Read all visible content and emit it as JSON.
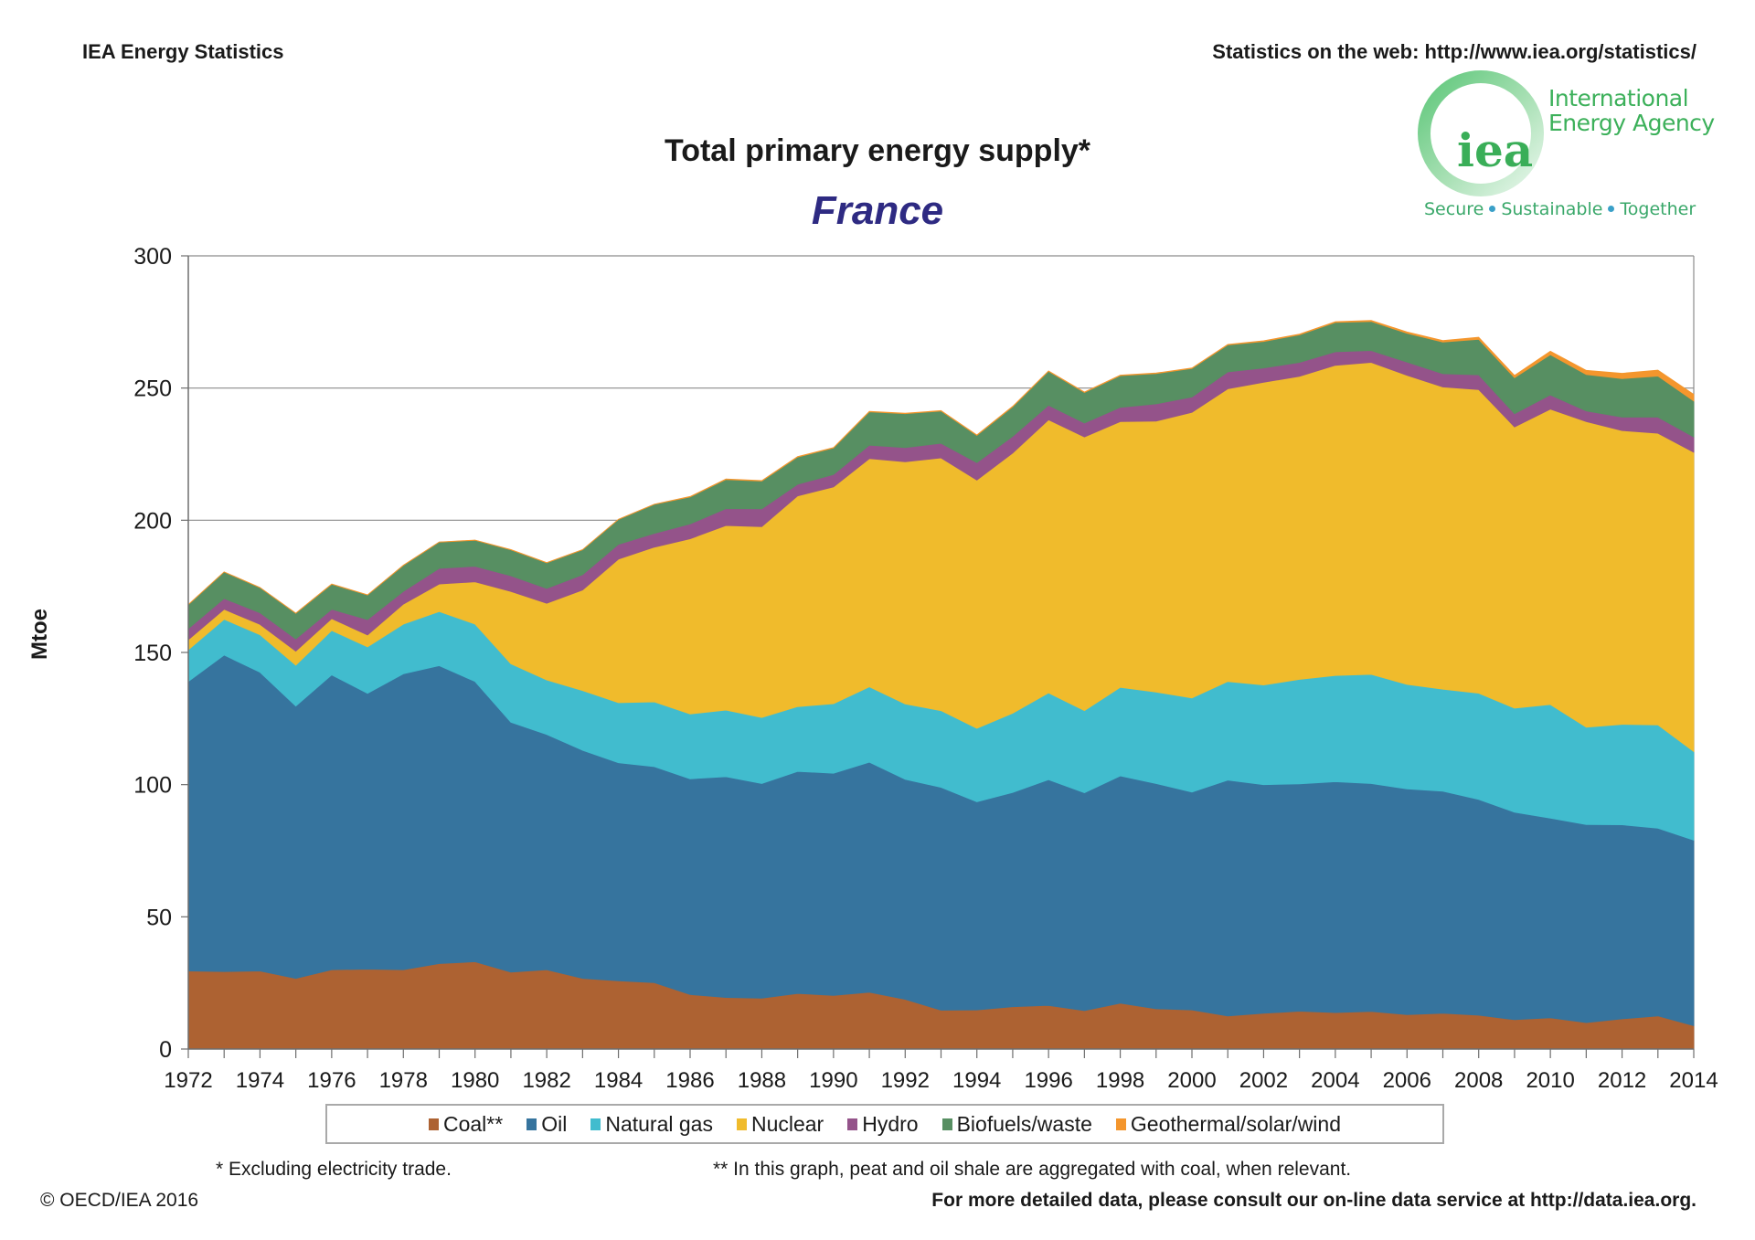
{
  "header": {
    "left": "IEA Energy Statistics",
    "right": "Statistics on the web: http://www.iea.org/statistics/"
  },
  "logo": {
    "mark": "iea",
    "name_line1": "International",
    "name_line2": "Energy Agency",
    "tagline": [
      "Secure",
      "Sustainable",
      "Together"
    ],
    "color": "#3cb05a"
  },
  "footer": {
    "note1": "* Excluding electricity trade.",
    "note2": "**  In this graph, peat and oil shale are aggregated with coal, when relevant.",
    "copyright": "© OECD/IEA 2016",
    "more": "For more detailed data, please consult our on-line data service at http://data.iea.org."
  },
  "chart_data": {
    "type": "area",
    "stacked": true,
    "title": "Total primary energy supply*",
    "subtitle": "France",
    "xlabel": "",
    "ylabel": "Mtoe",
    "ylim": [
      0,
      300
    ],
    "yticks": [
      0,
      50,
      100,
      150,
      200,
      250,
      300
    ],
    "xlim": [
      1972,
      2014
    ],
    "xtick_labels": [
      "1972",
      "1974",
      "1976",
      "1978",
      "1980",
      "1982",
      "1984",
      "1986",
      "1988",
      "1990",
      "1992",
      "1994",
      "1996",
      "1998",
      "2000",
      "2002",
      "2004",
      "2006",
      "2008",
      "2010",
      "2012",
      "2014"
    ],
    "grid": true,
    "legend_position": "bottom",
    "x": [
      1972,
      1973,
      1974,
      1975,
      1976,
      1977,
      1978,
      1979,
      1980,
      1981,
      1982,
      1983,
      1984,
      1985,
      1986,
      1987,
      1988,
      1989,
      1990,
      1991,
      1992,
      1993,
      1994,
      1995,
      1996,
      1997,
      1998,
      1999,
      2000,
      2001,
      2002,
      2003,
      2004,
      2005,
      2006,
      2007,
      2008,
      2009,
      2010,
      2011,
      2012,
      2013,
      2014
    ],
    "series": [
      {
        "name": "Coal**",
        "color": "#ad6232",
        "values": [
          29.5,
          29.3,
          29.5,
          26.7,
          30.0,
          30.2,
          30.0,
          32.3,
          33.0,
          29.1,
          30.0,
          26.7,
          25.8,
          25.1,
          20.6,
          19.5,
          19.2,
          21.0,
          20.3,
          21.5,
          18.8,
          14.7,
          14.8,
          16.0,
          16.5,
          14.5,
          17.3,
          15.2,
          14.8,
          12.5,
          13.5,
          14.3,
          13.8,
          14.2,
          13.0,
          13.5,
          12.8,
          11.1,
          11.8,
          10.0,
          11.4,
          12.5,
          8.8
        ]
      },
      {
        "name": "Oil",
        "color": "#36749e",
        "values": [
          109.5,
          119.7,
          113.0,
          103.0,
          111.5,
          104.3,
          111.9,
          112.7,
          106.0,
          94.5,
          89.0,
          86.3,
          82.5,
          81.7,
          81.6,
          83.5,
          81.2,
          84.0,
          84.0,
          87.0,
          83.2,
          84.3,
          78.7,
          81.0,
          85.4,
          82.4,
          86.0,
          85.2,
          82.4,
          89.2,
          86.5,
          86.0,
          87.3,
          86.2,
          85.4,
          84.0,
          81.6,
          78.5,
          75.5,
          74.9,
          73.4,
          71.0,
          70.2
        ]
      },
      {
        "name": "Natural gas",
        "color": "#41bcce",
        "values": [
          12.0,
          13.5,
          14.2,
          15.5,
          16.8,
          17.6,
          18.8,
          20.5,
          21.7,
          22.1,
          20.6,
          22.6,
          22.7,
          24.5,
          24.5,
          25.2,
          25.0,
          24.5,
          26.3,
          28.5,
          28.5,
          29.0,
          27.8,
          30.0,
          32.8,
          31.1,
          33.5,
          34.6,
          35.6,
          37.3,
          37.7,
          39.5,
          40.2,
          41.3,
          39.5,
          38.6,
          40.2,
          39.3,
          43.0,
          36.8,
          38.0,
          39.1,
          33.5
        ]
      },
      {
        "name": "Nuclear",
        "color": "#f0bb2c",
        "values": [
          3.8,
          3.8,
          3.9,
          5.3,
          4.5,
          4.5,
          7.6,
          10.4,
          16.0,
          27.4,
          29.0,
          38.0,
          54.3,
          58.5,
          66.3,
          69.8,
          72.2,
          79.7,
          82.0,
          86.3,
          91.6,
          95.6,
          93.9,
          98.4,
          103.3,
          103.5,
          100.5,
          102.5,
          108.0,
          110.7,
          114.5,
          114.6,
          117.3,
          118.0,
          116.9,
          114.3,
          114.8,
          106.4,
          111.7,
          115.6,
          111.1,
          110.3,
          113.2
        ]
      },
      {
        "name": "Hydro",
        "color": "#94538a",
        "values": [
          4.2,
          4.1,
          4.4,
          4.6,
          3.5,
          5.8,
          4.8,
          5.9,
          5.9,
          5.9,
          5.6,
          5.8,
          5.6,
          5.2,
          5.6,
          6.4,
          6.7,
          4.4,
          4.7,
          5.1,
          5.4,
          5.5,
          6.6,
          6.3,
          5.5,
          5.3,
          5.4,
          6.5,
          5.8,
          6.4,
          5.4,
          5.3,
          5.1,
          4.5,
          5.0,
          5.0,
          5.6,
          5.0,
          5.4,
          4.0,
          5.1,
          6.1,
          5.8
        ]
      },
      {
        "name": "Biofuels/waste",
        "color": "#578f62",
        "values": [
          9.0,
          10.0,
          9.5,
          9.7,
          9.5,
          9.3,
          9.8,
          9.9,
          9.8,
          9.8,
          9.7,
          9.4,
          9.4,
          11.0,
          10.2,
          11.0,
          10.5,
          10.3,
          10.0,
          12.6,
          12.8,
          12.2,
          10.3,
          11.2,
          12.8,
          11.5,
          12.0,
          11.5,
          10.8,
          10.2,
          10.0,
          10.4,
          11.1,
          11.0,
          10.9,
          12.0,
          13.4,
          13.6,
          15.2,
          13.8,
          14.6,
          15.5,
          13.6
        ]
      },
      {
        "name": "Geothermal/solar/wind",
        "color": "#f4962d",
        "values": [
          0.1,
          0.1,
          0.1,
          0.1,
          0.1,
          0.1,
          0.1,
          0.1,
          0.1,
          0.1,
          0.1,
          0.1,
          0.1,
          0.1,
          0.2,
          0.2,
          0.2,
          0.2,
          0.2,
          0.2,
          0.2,
          0.2,
          0.2,
          0.2,
          0.2,
          0.2,
          0.2,
          0.2,
          0.2,
          0.2,
          0.3,
          0.3,
          0.3,
          0.4,
          0.5,
          0.6,
          0.8,
          0.9,
          1.3,
          1.6,
          2.0,
          2.3,
          2.5
        ]
      }
    ]
  }
}
